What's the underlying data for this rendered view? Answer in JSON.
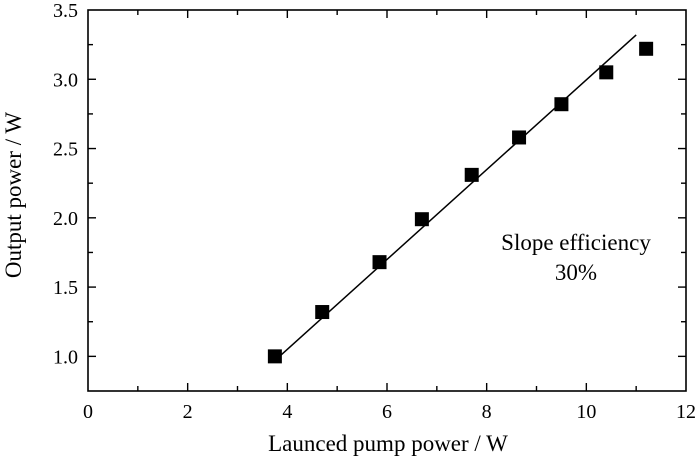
{
  "chart_data": {
    "type": "scatter",
    "xlabel": "Launced pump power / W",
    "ylabel": "Output power / W",
    "xlim": [
      0,
      12
    ],
    "ylim": [
      0.75,
      3.5
    ],
    "xticks": [
      0,
      2,
      4,
      6,
      8,
      10,
      12
    ],
    "xtick_labels": [
      "0",
      "2",
      "4",
      "6",
      "8",
      "10",
      "12"
    ],
    "yticks": [
      1.0,
      1.5,
      2.0,
      2.5,
      3.0,
      3.5
    ],
    "ytick_labels": [
      "1.0",
      "1.5",
      "2.0",
      "2.5",
      "3.0",
      "3.5"
    ],
    "grid": false,
    "series": [
      {
        "marker": "square",
        "color": "#000000",
        "x": [
          3.75,
          4.7,
          5.85,
          6.7,
          7.7,
          8.65,
          9.5,
          10.4,
          11.2
        ],
        "y": [
          1.0,
          1.32,
          1.68,
          1.99,
          2.31,
          2.58,
          2.82,
          3.05,
          3.22
        ]
      }
    ],
    "fit_line": {
      "x": [
        3.75,
        11.0
      ],
      "y": [
        0.97,
        3.32
      ],
      "color": "#000000"
    },
    "annotation": {
      "line1": "Slope efficiency",
      "line2": "30%"
    }
  }
}
